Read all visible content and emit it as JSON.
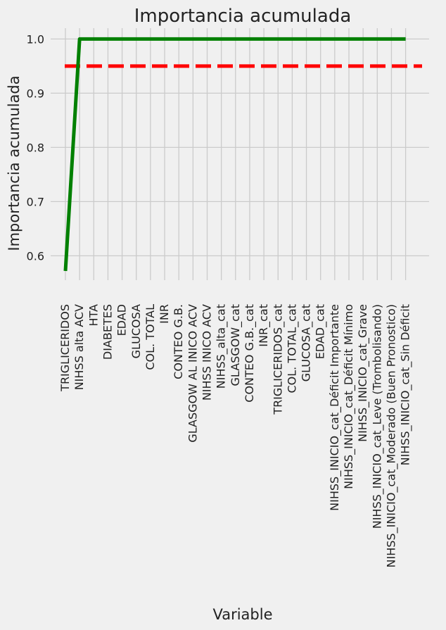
{
  "chart_data": {
    "type": "line",
    "title": "Importancia acumulada",
    "xlabel": "Variable",
    "ylabel": "Importancia acumulada",
    "ylim": [
      0.555,
      1.02
    ],
    "yticks": [
      0.6,
      0.7,
      0.8,
      0.9,
      1.0
    ],
    "grid": true,
    "categories": [
      "TRIGLICERIDOS",
      "NIHSS alta ACV",
      "HTA",
      "DIABETES",
      "EDAD",
      "GLUCOSA",
      "COL. TOTAL",
      "INR",
      "CONTEO G.B.",
      "GLASGOW AL INICO ACV",
      "NIHSS INICO ACV",
      "NIHSS_alta_cat",
      "GLASGOW_cat",
      "CONTEO G.B._cat",
      "INR_cat",
      "TRIGLICERIDOS_cat",
      "COL. TOTAL_cat",
      "GLUCOSA_cat",
      "EDAD_cat",
      "NIHSS_INICIO_cat_Déficit Importante",
      "NIHSS_INICIO_cat_Déficit Mínimo",
      "NIHSS_INICIO_cat_Grave",
      "NIHSS_INICIO_cat_Leve (Trombolisando)",
      "NIHSS_INICIO_cat_Moderado (Buen Pronostico)",
      "NIHSS_INICIO_cat_Sin Déficit"
    ],
    "series": [
      {
        "color": "#008000",
        "values": [
          0.572,
          1.0,
          1.0,
          1.0,
          1.0,
          1.0,
          1.0,
          1.0,
          1.0,
          1.0,
          1.0,
          1.0,
          1.0,
          1.0,
          1.0,
          1.0,
          1.0,
          1.0,
          1.0,
          1.0,
          1.0,
          1.0,
          1.0,
          1.0,
          1.0
        ]
      }
    ],
    "threshold": {
      "value": 0.95,
      "color": "#ff0000",
      "style": "dashed"
    }
  }
}
